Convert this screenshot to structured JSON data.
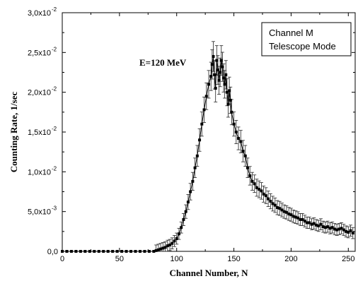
{
  "chart_data": {
    "type": "scatter",
    "xlabel": "Channel Number, N",
    "ylabel": "Counting Rate, 1/sec",
    "xlim": [
      0,
      256
    ],
    "ylim": [
      0,
      0.03
    ],
    "x_ticks": [
      0,
      50,
      100,
      150,
      200,
      250
    ],
    "x_tick_labels": [
      "0",
      "50",
      "100",
      "150",
      "200",
      "250"
    ],
    "y_ticks": [
      0,
      0.005,
      0.01,
      0.015,
      0.02,
      0.025,
      0.03
    ],
    "y_tick_labels": [
      "0,0",
      "5,0x10",
      "1,0x10",
      "1,5x10",
      "2,0x10",
      "2,5x10",
      "3,0x10"
    ],
    "y_tick_exponents": [
      "",
      "-3",
      "-2",
      "-2",
      "-2",
      "-2",
      "-2"
    ],
    "annotation": "E=120 MeV",
    "legend_box": [
      "Channel M",
      "Telescope Mode"
    ],
    "grid": false,
    "error_bars": true,
    "marker": "square",
    "series_color": "#000000",
    "points": [
      [
        80,
        0.0
      ],
      [
        82,
        0.0001
      ],
      [
        84,
        0.0002
      ],
      [
        86,
        0.0003
      ],
      [
        88,
        0.0004
      ],
      [
        90,
        0.0005
      ],
      [
        92,
        0.0007
      ],
      [
        94,
        0.0008
      ],
      [
        96,
        0.001
      ],
      [
        98,
        0.0013
      ],
      [
        100,
        0.0016
      ],
      [
        102,
        0.0022
      ],
      [
        104,
        0.003
      ],
      [
        106,
        0.004
      ],
      [
        108,
        0.005
      ],
      [
        110,
        0.0062
      ],
      [
        112,
        0.0075
      ],
      [
        114,
        0.0088
      ],
      [
        116,
        0.0105
      ],
      [
        118,
        0.012
      ],
      [
        120,
        0.014
      ],
      [
        122,
        0.016
      ],
      [
        124,
        0.0178
      ],
      [
        126,
        0.0195
      ],
      [
        128,
        0.021
      ],
      [
        130,
        0.022
      ],
      [
        131,
        0.0235
      ],
      [
        132,
        0.0245
      ],
      [
        133,
        0.0222
      ],
      [
        134,
        0.0205
      ],
      [
        135,
        0.024
      ],
      [
        136,
        0.0228
      ],
      [
        137,
        0.0215
      ],
      [
        138,
        0.0225
      ],
      [
        139,
        0.024
      ],
      [
        140,
        0.0232
      ],
      [
        141,
        0.0218
      ],
      [
        142,
        0.021
      ],
      [
        143,
        0.0222
      ],
      [
        144,
        0.02
      ],
      [
        145,
        0.0185
      ],
      [
        146,
        0.0202
      ],
      [
        147,
        0.019
      ],
      [
        148,
        0.0175
      ],
      [
        150,
        0.016
      ],
      [
        152,
        0.015
      ],
      [
        154,
        0.0142
      ],
      [
        156,
        0.0138
      ],
      [
        158,
        0.0126
      ],
      [
        160,
        0.012
      ],
      [
        162,
        0.0105
      ],
      [
        164,
        0.0095
      ],
      [
        166,
        0.0088
      ],
      [
        168,
        0.0085
      ],
      [
        170,
        0.008
      ],
      [
        172,
        0.0078
      ],
      [
        174,
        0.0076
      ],
      [
        176,
        0.0072
      ],
      [
        178,
        0.007
      ],
      [
        180,
        0.0066
      ],
      [
        182,
        0.0063
      ],
      [
        184,
        0.006
      ],
      [
        186,
        0.0058
      ],
      [
        188,
        0.0055
      ],
      [
        190,
        0.0054
      ],
      [
        192,
        0.0052
      ],
      [
        194,
        0.005
      ],
      [
        196,
        0.0049
      ],
      [
        198,
        0.0047
      ],
      [
        200,
        0.0046
      ],
      [
        202,
        0.0044
      ],
      [
        204,
        0.0043
      ],
      [
        206,
        0.0042
      ],
      [
        208,
        0.004
      ],
      [
        210,
        0.004
      ],
      [
        212,
        0.0038
      ],
      [
        214,
        0.0036
      ],
      [
        216,
        0.0036
      ],
      [
        218,
        0.0034
      ],
      [
        220,
        0.0035
      ],
      [
        222,
        0.0033
      ],
      [
        224,
        0.0032
      ],
      [
        226,
        0.0034
      ],
      [
        228,
        0.0031
      ],
      [
        230,
        0.003
      ],
      [
        232,
        0.0031
      ],
      [
        234,
        0.0029
      ],
      [
        236,
        0.003
      ],
      [
        238,
        0.0028
      ],
      [
        240,
        0.0027
      ],
      [
        242,
        0.0028
      ],
      [
        244,
        0.0029
      ],
      [
        246,
        0.0027
      ],
      [
        248,
        0.0025
      ],
      [
        250,
        0.0024
      ],
      [
        252,
        0.0026
      ],
      [
        254,
        0.0023
      ]
    ],
    "baseline_points": [
      0,
      4,
      8,
      12,
      16,
      20,
      24,
      28,
      32,
      36,
      40,
      44,
      48,
      52,
      56,
      60,
      64,
      68,
      72,
      76
    ]
  }
}
